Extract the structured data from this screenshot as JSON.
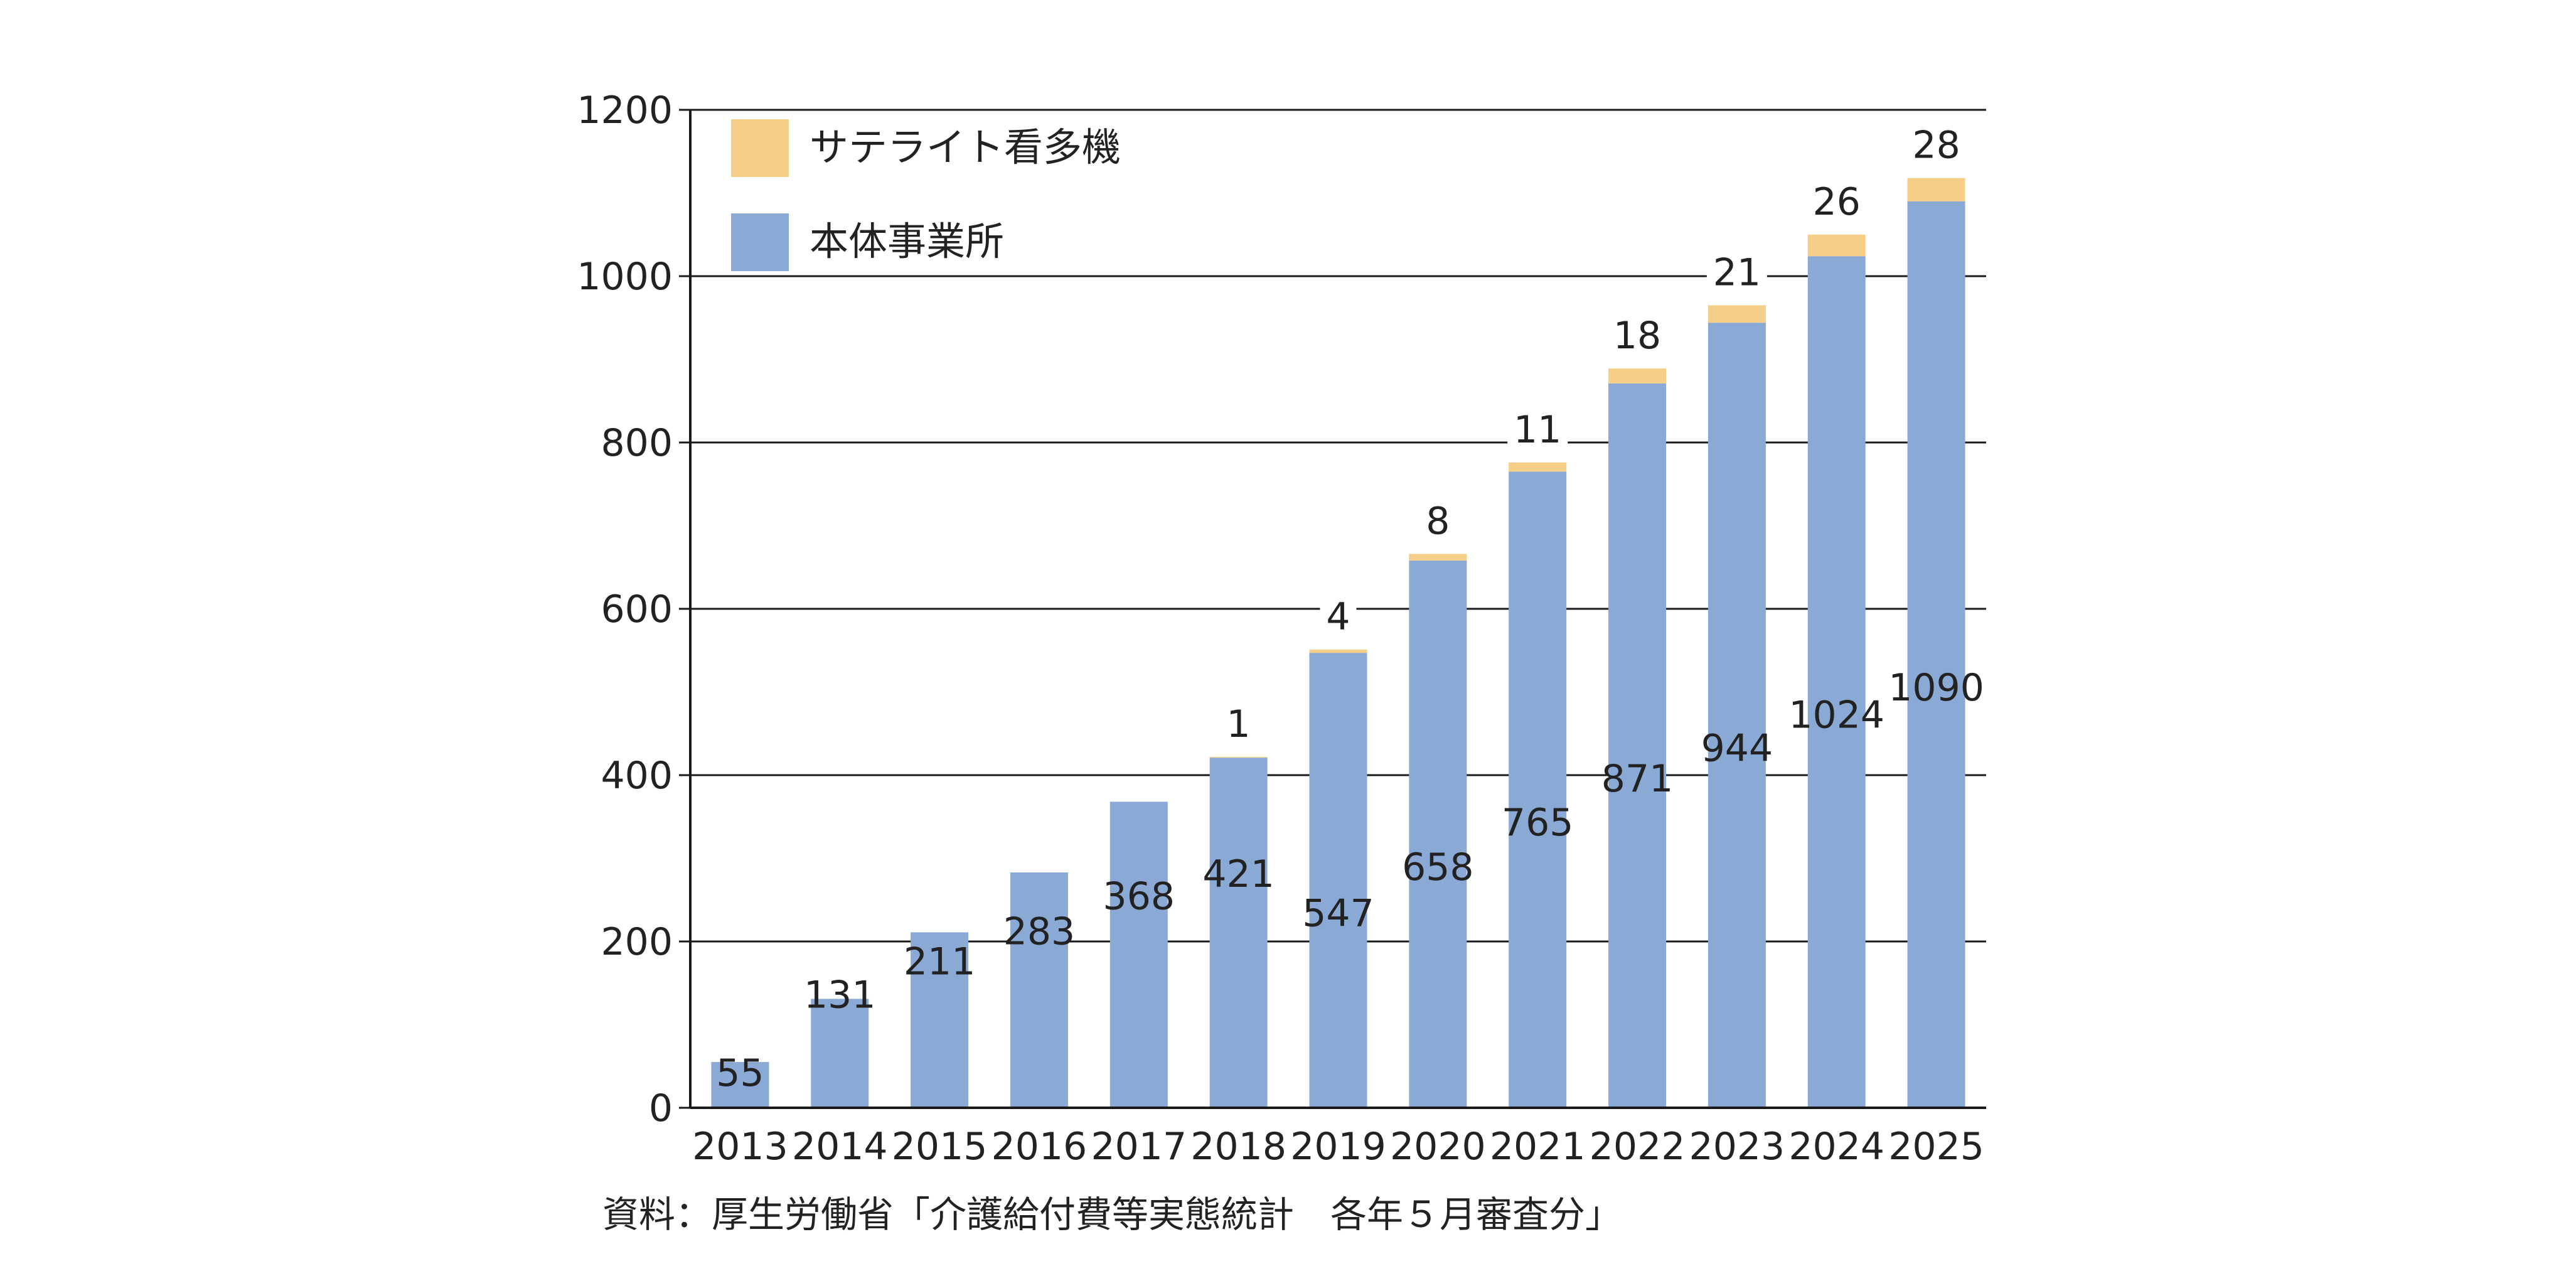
{
  "chart_data": {
    "type": "bar",
    "stacked": true,
    "title": "",
    "xlabel": "",
    "ylabel": "",
    "ylim": [
      0,
      1200
    ],
    "yticks": [
      0,
      200,
      400,
      600,
      800,
      1000,
      1200
    ],
    "categories": [
      "2013",
      "2014",
      "2015",
      "2016",
      "2017",
      "2018",
      "2019",
      "2020",
      "2021",
      "2022",
      "2023",
      "2024",
      "2025"
    ],
    "series": [
      {
        "name": "本体事業所",
        "color": "#8aa9d4",
        "values": [
          55,
          131,
          211,
          283,
          368,
          421,
          547,
          658,
          765,
          871,
          944,
          1024,
          1090
        ],
        "labels": [
          "55",
          "131",
          "211",
          "283",
          "368",
          "421",
          "547",
          "658",
          "765",
          "871",
          "944",
          "1024",
          "1090"
        ]
      },
      {
        "name": "サテライト看多機",
        "color": "#f5cf87",
        "values": [
          0,
          0,
          0,
          0,
          0,
          1,
          4,
          8,
          11,
          18,
          21,
          26,
          28
        ],
        "labels": [
          "",
          "",
          "",
          "",
          "",
          "1",
          "4",
          "8",
          "11",
          "18",
          "21",
          "26",
          "28"
        ]
      }
    ],
    "legend_position": "top-left",
    "grid": true,
    "source": "資料：厚生労働省「介護給付費等実態統計　各年５月審査分」"
  }
}
